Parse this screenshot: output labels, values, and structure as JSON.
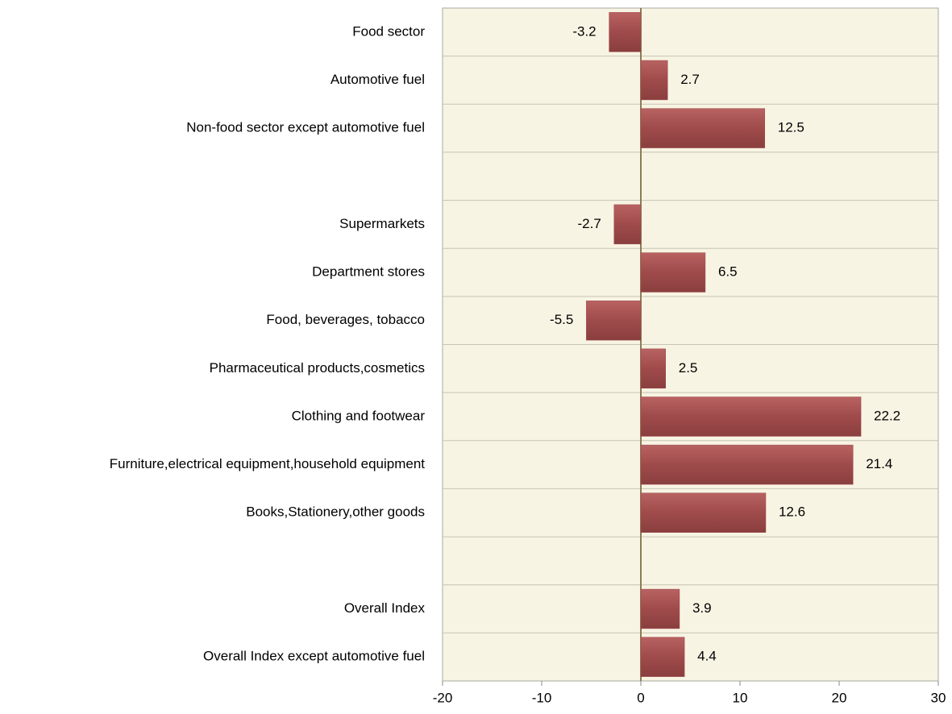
{
  "chart_data": {
    "type": "hbar",
    "categories": [
      "Food sector",
      "Automotive fuel",
      "Non-food sector except automotive fuel",
      null,
      "Supermarkets",
      "Department stores",
      "Food, beverages, tobacco",
      "Pharmaceutical products,cosmetics",
      "Clothing and footwear",
      "Furniture,electrical equipment,household equipment",
      "Books,Stationery,other goods",
      null,
      "Overall Index",
      "Overall Index except automotive fuel"
    ],
    "values": [
      -3.2,
      2.7,
      12.5,
      null,
      -2.7,
      6.5,
      -5.5,
      2.5,
      22.2,
      21.4,
      12.6,
      null,
      3.9,
      4.4
    ],
    "color": "#a04b4b",
    "xlim": [
      -20,
      30
    ],
    "xticks": [
      -20,
      -10,
      0,
      10,
      20,
      30
    ]
  }
}
